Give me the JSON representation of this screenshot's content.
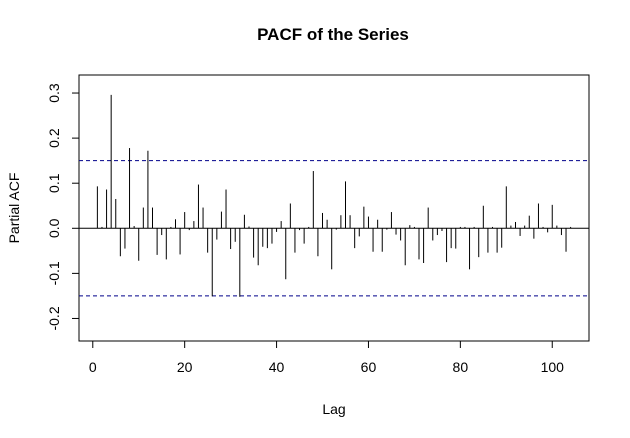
{
  "chart_data": {
    "type": "bar",
    "title": "PACF of the Series",
    "xlabel": "Lag",
    "ylabel": "Partial ACF",
    "xlim": [
      -3,
      108
    ],
    "ylim": [
      -0.25,
      0.34
    ],
    "x_ticks": [
      0,
      20,
      40,
      60,
      80,
      100
    ],
    "x_tick_labels": [
      "0",
      "20",
      "40",
      "60",
      "80",
      "100"
    ],
    "y_ticks": [
      -0.2,
      -0.1,
      0.0,
      0.1,
      0.2,
      0.3
    ],
    "y_tick_labels": [
      "-0.2",
      "-0.1",
      "0.0",
      "0.1",
      "0.2",
      "0.3"
    ],
    "confidence_band": [
      -0.15,
      0.15
    ],
    "zero_line": 0,
    "lags": [
      1,
      2,
      3,
      4,
      5,
      6,
      7,
      8,
      9,
      10,
      11,
      12,
      13,
      14,
      15,
      16,
      17,
      18,
      19,
      20,
      21,
      22,
      23,
      24,
      25,
      26,
      27,
      28,
      29,
      30,
      31,
      32,
      33,
      34,
      35,
      36,
      37,
      38,
      39,
      40,
      41,
      42,
      43,
      44,
      45,
      46,
      47,
      48,
      49,
      50,
      51,
      52,
      53,
      54,
      55,
      56,
      57,
      58,
      59,
      60,
      61,
      62,
      63,
      64,
      65,
      66,
      67,
      68,
      69,
      70,
      71,
      72,
      73,
      74,
      75,
      76,
      77,
      78,
      79,
      80,
      81,
      82,
      83,
      84,
      85,
      86,
      87,
      88,
      89,
      90,
      91,
      92,
      93,
      94,
      95,
      96,
      97,
      98,
      99,
      100,
      101,
      102,
      103,
      104
    ],
    "values": [
      0.093,
      0.003,
      0.086,
      0.296,
      0.065,
      -0.062,
      -0.045,
      0.178,
      0.005,
      -0.072,
      0.046,
      0.172,
      0.046,
      -0.059,
      -0.015,
      -0.069,
      0.003,
      0.02,
      -0.058,
      0.036,
      -0.004,
      0.016,
      0.097,
      0.046,
      -0.054,
      -0.151,
      -0.025,
      0.037,
      0.086,
      -0.046,
      -0.03,
      -0.152,
      0.03,
      0.004,
      -0.065,
      -0.082,
      -0.041,
      -0.044,
      -0.034,
      -0.008,
      0.016,
      -0.113,
      0.055,
      -0.054,
      -0.004,
      -0.034,
      0.003,
      0.127,
      -0.062,
      0.034,
      0.019,
      -0.091,
      -0.003,
      0.029,
      0.104,
      0.029,
      -0.044,
      -0.018,
      0.048,
      0.026,
      -0.052,
      0.019,
      -0.052,
      -0.003,
      0.036,
      -0.014,
      -0.027,
      -0.082,
      0.007,
      0.003,
      -0.069,
      -0.077,
      0.046,
      -0.027,
      -0.015,
      -0.006,
      -0.075,
      -0.044,
      -0.045,
      0.003,
      0.003,
      -0.091,
      0.003,
      -0.064,
      0.05,
      -0.054,
      0.003,
      -0.054,
      -0.043,
      0.093,
      0.006,
      0.014,
      -0.017,
      0.006,
      0.028,
      -0.023,
      0.055,
      0.003,
      -0.009,
      0.052,
      0.006,
      -0.015,
      -0.052,
      0.003
    ]
  }
}
